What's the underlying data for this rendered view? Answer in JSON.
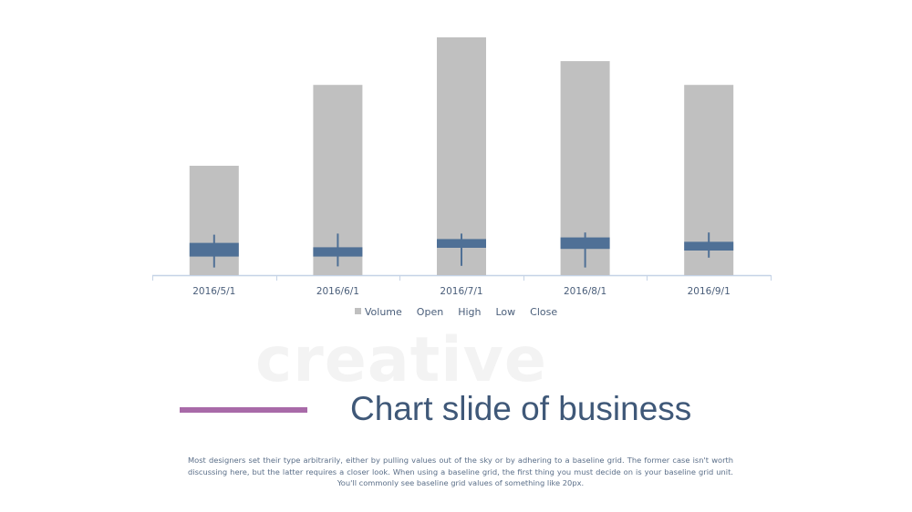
{
  "slide": {
    "watermark": "creative",
    "title": "Chart slide of business",
    "body": "Most designers set their type arbitrarily, either by pulling values out of the sky or by adhering to a baseline grid. The former case isn't worth discussing here, but the latter requires a closer look. When using a baseline grid, the first thing you must decide on is your baseline grid unit. You'll commonly see baseline grid values of something like 20px.",
    "accent_color": "#a86aa8",
    "title_color": "#3f5878"
  },
  "chart_data": {
    "type": "bar",
    "subtype": "volume-open-high-low-close stock chart",
    "categories": [
      "2016/5/1",
      "2016/6/1",
      "2016/7/1",
      "2016/8/1",
      "2016/9/1"
    ],
    "series": [
      {
        "name": "Volume",
        "values": [
          46,
          80,
          100,
          90,
          80
        ]
      },
      {
        "name": "Open",
        "values": [
          29.5,
          25.5,
          33,
          34.5,
          30.5
        ]
      },
      {
        "name": "High",
        "values": [
          37,
          38,
          38,
          39,
          39
        ]
      },
      {
        "name": "Low",
        "values": [
          7,
          8,
          8.5,
          7,
          16
        ]
      },
      {
        "name": "Close",
        "values": [
          17,
          17,
          25,
          24,
          22.5
        ]
      }
    ],
    "volume_range": [
      0,
      100
    ],
    "price_range": [
      0,
      100
    ],
    "legend": [
      "Volume",
      "Open",
      "High",
      "Low",
      "Close"
    ],
    "legend_position": "bottom",
    "grid": false,
    "colors": {
      "volume": "#c0c0c0",
      "up_candle": "#ffffff",
      "down_candle": "#4f7096",
      "wick": "#4f7096",
      "axis": "#c5d3e6",
      "legend_swatch": "#c0c0c0"
    }
  }
}
